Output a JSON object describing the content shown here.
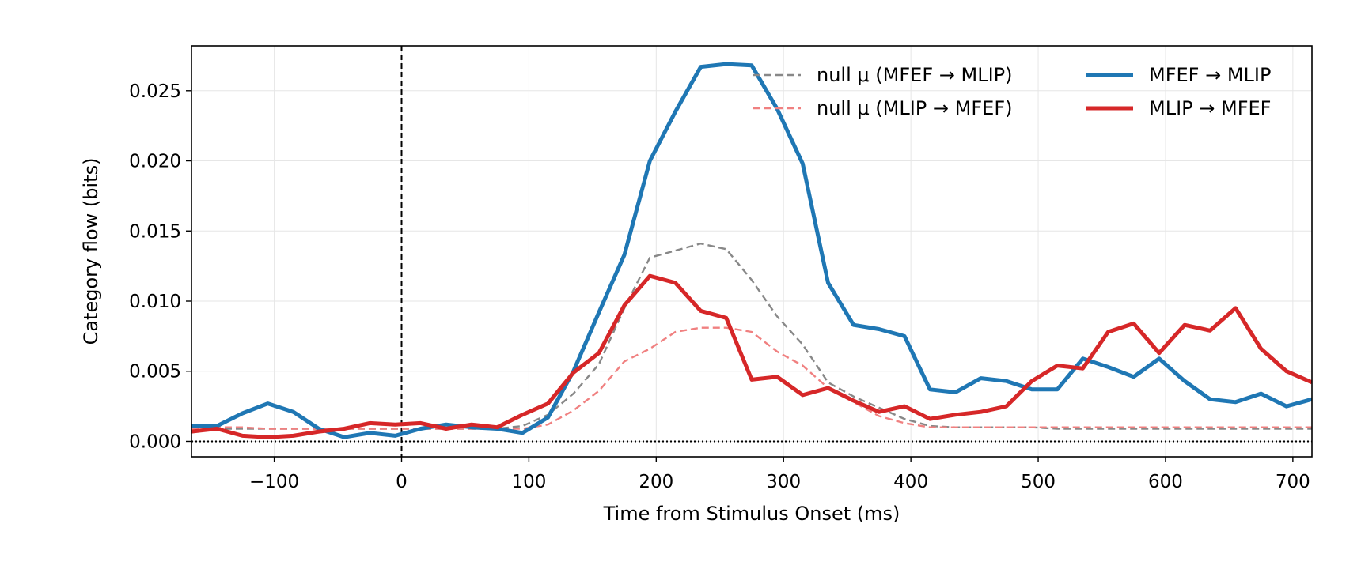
{
  "chart_data": {
    "type": "line",
    "xlabel": "Time from Stimulus Onset (ms)",
    "ylabel": "Category flow (bits)",
    "xlim": [
      -165,
      715
    ],
    "ylim": [
      -0.0011,
      0.0282
    ],
    "grid": true,
    "legend_position": "top-right",
    "x_ticks": [
      -100,
      0,
      100,
      200,
      300,
      400,
      500,
      600,
      700
    ],
    "x_tick_labels": [
      "−100",
      "0",
      "100",
      "200",
      "300",
      "400",
      "500",
      "600",
      "700"
    ],
    "y_ticks": [
      0.0,
      0.005,
      0.01,
      0.015,
      0.02,
      0.025
    ],
    "y_tick_labels": [
      "0.000",
      "0.005",
      "0.010",
      "0.015",
      "0.020",
      "0.025"
    ],
    "vline_x": 0,
    "hline_y": 0,
    "x": [
      -165,
      -145,
      -125,
      -105,
      -85,
      -65,
      -45,
      -25,
      -5,
      15,
      35,
      55,
      75,
      95,
      115,
      135,
      155,
      175,
      195,
      215,
      235,
      255,
      275,
      295,
      315,
      335,
      355,
      375,
      395,
      415,
      435,
      455,
      475,
      495,
      515,
      535,
      555,
      575,
      595,
      615,
      635,
      655,
      675,
      695,
      715
    ],
    "series": [
      {
        "name": "null μ (MFEF → MLIP)",
        "color": "#888888",
        "style": "dashed",
        "values": [
          0.0009,
          0.0009,
          0.0009,
          0.0009,
          0.0009,
          0.0009,
          0.0009,
          0.0009,
          0.0009,
          0.0009,
          0.0009,
          0.0009,
          0.0009,
          0.0011,
          0.0019,
          0.0034,
          0.0055,
          0.0095,
          0.0131,
          0.0136,
          0.0141,
          0.0137,
          0.0115,
          0.0089,
          0.0069,
          0.0042,
          0.0032,
          0.0024,
          0.0016,
          0.0011,
          0.001,
          0.001,
          0.001,
          0.001,
          0.0009,
          0.0009,
          0.0009,
          0.0009,
          0.0009,
          0.0009,
          0.0009,
          0.0009,
          0.0009,
          0.0009,
          0.0009
        ]
      },
      {
        "name": "null μ (MLIP → MFEF)",
        "color": "#f08080",
        "style": "dashed",
        "values": [
          0.0009,
          0.001,
          0.001,
          0.0009,
          0.0009,
          0.0009,
          0.0009,
          0.0009,
          0.0009,
          0.0009,
          0.0009,
          0.0009,
          0.0009,
          0.0009,
          0.0012,
          0.0022,
          0.0036,
          0.0057,
          0.0066,
          0.0078,
          0.0081,
          0.0081,
          0.0078,
          0.0064,
          0.0054,
          0.0038,
          0.0028,
          0.0018,
          0.0013,
          0.001,
          0.001,
          0.001,
          0.001,
          0.001,
          0.001,
          0.001,
          0.001,
          0.001,
          0.001,
          0.001,
          0.001,
          0.001,
          0.001,
          0.001,
          0.001
        ]
      },
      {
        "name": "MFEF → MLIP",
        "color": "#1f77b4",
        "style": "solid",
        "values": [
          0.0011,
          0.0011,
          0.002,
          0.0027,
          0.0021,
          0.0009,
          0.0003,
          0.0006,
          0.0004,
          0.0009,
          0.0012,
          0.001,
          0.0009,
          0.0006,
          0.0017,
          0.005,
          0.0092,
          0.0133,
          0.02,
          0.0235,
          0.0267,
          0.0269,
          0.0268,
          0.0237,
          0.0198,
          0.0113,
          0.0083,
          0.008,
          0.0075,
          0.0037,
          0.0035,
          0.0045,
          0.0043,
          0.0037,
          0.0037,
          0.0059,
          0.0053,
          0.0046,
          0.0059,
          0.0043,
          0.003,
          0.0028,
          0.0034,
          0.0025,
          0.003
        ]
      },
      {
        "name": "MLIP → MFEF",
        "color": "#d62728",
        "style": "solid",
        "values": [
          0.0007,
          0.0009,
          0.0004,
          0.0003,
          0.0004,
          0.0007,
          0.0009,
          0.0013,
          0.0012,
          0.0013,
          0.0009,
          0.0012,
          0.001,
          0.0019,
          0.0027,
          0.0049,
          0.0063,
          0.0097,
          0.0118,
          0.0113,
          0.0093,
          0.0088,
          0.0044,
          0.0046,
          0.0033,
          0.0038,
          0.0029,
          0.0021,
          0.0025,
          0.0016,
          0.0019,
          0.0021,
          0.0025,
          0.0043,
          0.0054,
          0.0052,
          0.0078,
          0.0084,
          0.0063,
          0.0083,
          0.0079,
          0.0095,
          0.0066,
          0.005,
          0.0042
        ]
      }
    ]
  }
}
